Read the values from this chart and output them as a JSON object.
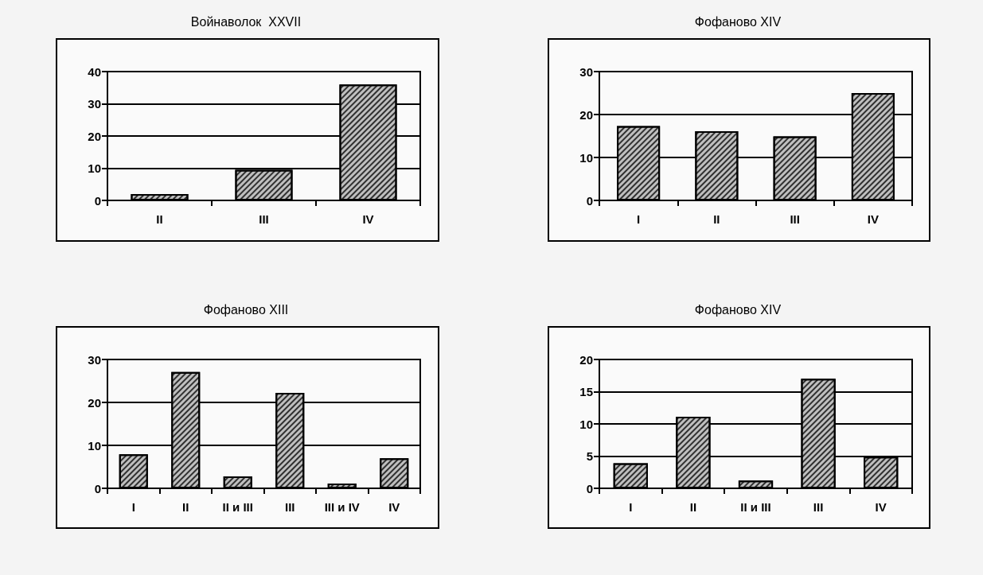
{
  "chart_data": [
    {
      "type": "bar",
      "title": "Войнаволок  XXVII",
      "categories": [
        "II",
        "III",
        "IV"
      ],
      "values": [
        2,
        9.5,
        36
      ],
      "color": "#bfbfbf",
      "ylim": [
        0,
        40
      ],
      "yticks": [
        0,
        10,
        20,
        30,
        40
      ],
      "grid": "y"
    },
    {
      "type": "bar",
      "title": "Фофаново XIV",
      "categories": [
        "I",
        "II",
        "III",
        "IV"
      ],
      "values": [
        17.3,
        16.1,
        14.9,
        25
      ],
      "color": "#bfbfbf",
      "ylim": [
        0,
        30
      ],
      "yticks": [
        0,
        10,
        20,
        30
      ],
      "grid": "y"
    },
    {
      "type": "bar",
      "title": "Фофаново XIII",
      "categories": [
        "I",
        "II",
        "II и III",
        "III",
        "III и IV",
        "IV"
      ],
      "values": [
        7.9,
        27.1,
        2.8,
        22.2,
        1.1,
        7
      ],
      "color": "#bfbfbf",
      "ylim": [
        0,
        30
      ],
      "yticks": [
        0,
        10,
        20,
        30
      ],
      "grid": "y"
    },
    {
      "type": "bar",
      "title": "Фофаново XIV",
      "categories": [
        "I",
        "II",
        "II и III",
        "III",
        "IV"
      ],
      "values": [
        3.9,
        11.1,
        1.2,
        17,
        4.9
      ],
      "color": "#bfbfbf",
      "ylim": [
        0,
        20
      ],
      "yticks": [
        0,
        5,
        10,
        15,
        20
      ],
      "grid": "y"
    }
  ]
}
